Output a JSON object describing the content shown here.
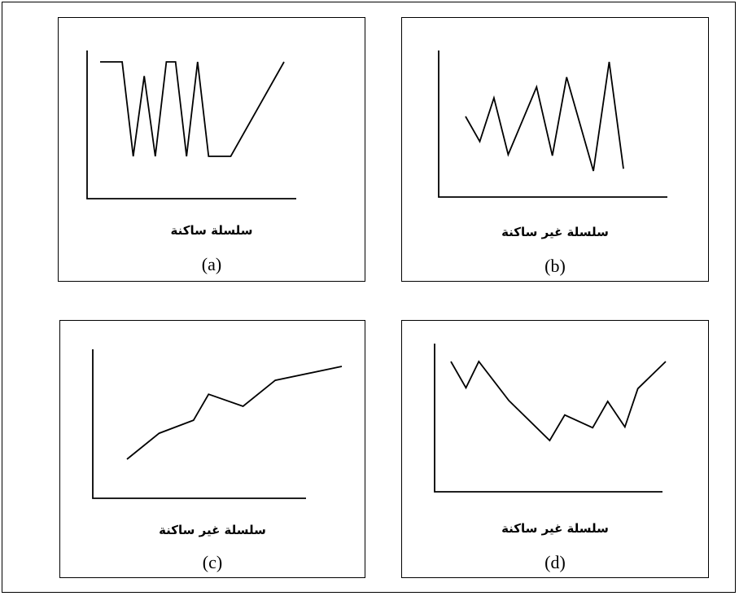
{
  "panels": [
    {
      "id": "a",
      "caption": "سلسلة ساكنة",
      "letter": "(a)",
      "series": [
        [
          0.0,
          1.0
        ],
        [
          0.12,
          1.0
        ],
        [
          0.18,
          0.0
        ],
        [
          0.24,
          0.85
        ],
        [
          0.3,
          0.0
        ],
        [
          0.36,
          1.0
        ],
        [
          0.41,
          1.0
        ],
        [
          0.47,
          0.0
        ],
        [
          0.53,
          1.0
        ],
        [
          0.59,
          0.0
        ],
        [
          0.71,
          0.0
        ],
        [
          1.0,
          1.0
        ]
      ]
    },
    {
      "id": "b",
      "caption": "سلسلة غير ساكنة",
      "letter": "(b)",
      "series": [
        [
          0.0,
          0.5
        ],
        [
          0.09,
          0.27
        ],
        [
          0.18,
          0.67
        ],
        [
          0.27,
          0.15
        ],
        [
          0.45,
          0.77
        ],
        [
          0.55,
          0.14
        ],
        [
          0.64,
          0.86
        ],
        [
          0.81,
          0.0
        ],
        [
          0.91,
          1.0
        ],
        [
          1.0,
          0.02
        ]
      ]
    },
    {
      "id": "c",
      "caption": "سلسلة غير ساكنة",
      "letter": "(c)",
      "series": [
        [
          0.0,
          0.0
        ],
        [
          0.15,
          0.28
        ],
        [
          0.31,
          0.42
        ],
        [
          0.38,
          0.7
        ],
        [
          0.54,
          0.57
        ],
        [
          0.69,
          0.85
        ],
        [
          1.0,
          1.0
        ]
      ]
    },
    {
      "id": "d",
      "caption": "سلسلة غير ساكنة",
      "letter": "(d)",
      "series": [
        [
          0.0,
          1.0
        ],
        [
          0.07,
          0.67
        ],
        [
          0.13,
          1.0
        ],
        [
          0.27,
          0.51
        ],
        [
          0.46,
          0.01
        ],
        [
          0.53,
          0.33
        ],
        [
          0.66,
          0.17
        ],
        [
          0.73,
          0.5
        ],
        [
          0.81,
          0.18
        ],
        [
          0.87,
          0.66
        ],
        [
          1.0,
          1.0
        ]
      ]
    }
  ]
}
